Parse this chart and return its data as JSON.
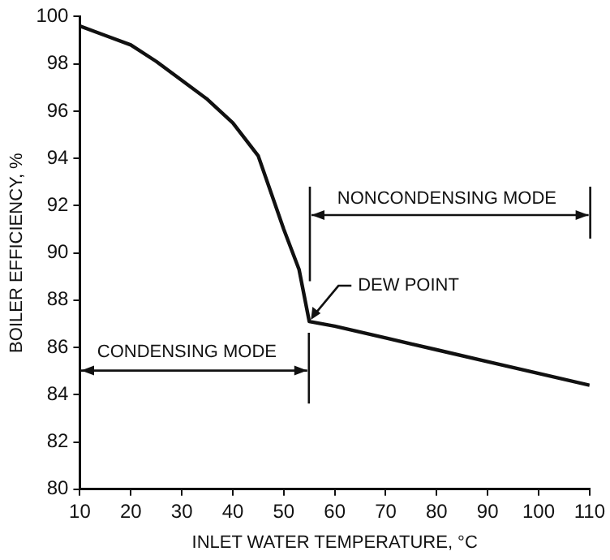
{
  "chart_data": {
    "type": "line",
    "xlabel": "INLET WATER TEMPERATURE, °C",
    "ylabel": "BOILER EFFICIENCY, %",
    "x": [
      10,
      15,
      20,
      25,
      30,
      35,
      40,
      45,
      50,
      53,
      55,
      60,
      70,
      80,
      90,
      100,
      110
    ],
    "series": [
      {
        "color": "#111111",
        "values": [
          99.6,
          99.2,
          98.8,
          98.1,
          97.3,
          96.5,
          95.5,
          94.1,
          91.0,
          89.3,
          87.1,
          86.9,
          86.4,
          85.9,
          85.4,
          84.9,
          84.4
        ]
      }
    ],
    "xlim": [
      10,
      110
    ],
    "xticks": [
      10,
      20,
      30,
      40,
      50,
      60,
      70,
      80,
      90,
      100,
      110
    ],
    "ylim": [
      80,
      100
    ],
    "yticks": [
      80,
      82,
      84,
      86,
      88,
      90,
      92,
      94,
      96,
      98,
      100
    ],
    "grid": false,
    "legend": false,
    "marker": "none",
    "line_style": "solid",
    "annotations": [
      "CONDENSING MODE",
      "NONCONDENSING MODE",
      {
        "text": "DEW POINT",
        "x": 55,
        "y": 87.1
      }
    ]
  }
}
